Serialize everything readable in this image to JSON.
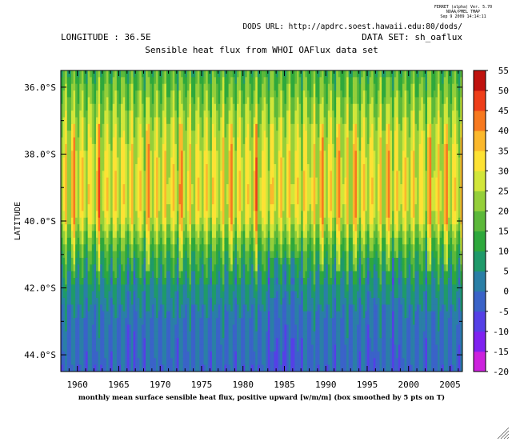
{
  "header": {
    "ferret_line1": "FERRET (alpha) Ver. 5.70",
    "ferret_line2": "NOAA/PMEL TMAP",
    "ferret_line3": "Sep  9 2009 14:14:11",
    "dods_url": "DODS URL: http://apdrc.soest.hawaii.edu:80/dods/",
    "longitude": "LONGITUDE : 36.5E",
    "dataset": "DATA SET: sh_oaflux"
  },
  "chart_data": {
    "type": "heatmap",
    "title": "Sensible heat flux from WHOI OAFlux data set",
    "xlabel": "monthly mean surface sensible heat flux, positive upward [w/m/m] (box smoothed by 5 pts on T)",
    "ylabel": "LATITUDE",
    "xlim": [
      1958.0,
      2006.5
    ],
    "ylim": [
      -44.5,
      -35.5
    ],
    "x_ticks": [
      1960,
      1965,
      1970,
      1975,
      1980,
      1985,
      1990,
      1995,
      2000,
      2005
    ],
    "y_ticks": [
      -36,
      -38,
      -40,
      -42,
      -44
    ],
    "y_tick_labels": [
      "36.0°S",
      "38.0°S",
      "40.0°S",
      "42.0°S",
      "44.0°S"
    ],
    "colorbar": {
      "levels": [
        -20,
        -15,
        -10,
        -5,
        0,
        5,
        10,
        15,
        20,
        25,
        30,
        35,
        40,
        45,
        50,
        55
      ],
      "labels": [
        "-20",
        "-15",
        "-10",
        "-5",
        "0",
        "5",
        "10",
        "15",
        "20",
        "25",
        "30",
        "35",
        "40",
        "45",
        "50",
        "55"
      ],
      "colors": [
        "#cc22dd",
        "#7f22f0",
        "#5540e6",
        "#3a63c8",
        "#2a7fa6",
        "#1f9a6a",
        "#2ea83c",
        "#5cb83a",
        "#95cf3a",
        "#d2e63a",
        "#fde234",
        "#fbb82c",
        "#f7791f",
        "#ee3e1a",
        "#bf120e"
      ]
    },
    "latitude_profile": {
      "latitudes": [
        -35.5,
        -36.0,
        -37.0,
        -38.0,
        -39.0,
        -39.5,
        -40.0,
        -40.5,
        -41.0,
        -41.5,
        -42.0,
        -42.5,
        -43.0,
        -44.0,
        -44.5
      ],
      "typical_values": [
        14,
        18,
        24,
        28,
        30,
        30,
        27,
        20,
        14,
        10,
        6,
        3,
        1,
        -1,
        -2
      ]
    },
    "time_series_notes": {
      "warm_years": [
        1959,
        1962,
        1968,
        1972,
        1978,
        1981,
        1989,
        1991,
        1993,
        1997,
        2002,
        2004,
        2006
      ],
      "cold_years": [
        1966,
        1983,
        1984,
        1985,
        1986,
        1995,
        1998
      ]
    },
    "grid": false,
    "legend": "right"
  }
}
